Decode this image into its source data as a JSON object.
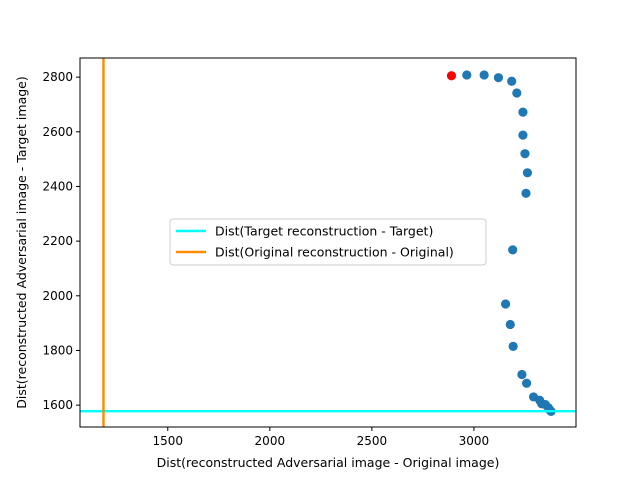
{
  "chart_data": {
    "type": "scatter",
    "title": "",
    "xlabel": "Dist(reconstructed Adversarial image - Original image)",
    "ylabel": "Dist(reconstructed Adversarial image - Target image)",
    "xlim": [
      1070,
      3500
    ],
    "ylim": [
      1520,
      2870
    ],
    "xticks": [
      1500,
      2000,
      2500,
      3000
    ],
    "yticks": [
      1600,
      1800,
      2000,
      2200,
      2400,
      2600,
      2800
    ],
    "grid": false,
    "legend_position": "center-left",
    "lines": [
      {
        "name": "Dist(Target reconstruction - Target)",
        "orientation": "horizontal",
        "value": 1578,
        "color": "#00ffff"
      },
      {
        "name": "Dist(Original reconstruction - Original)",
        "orientation": "vertical",
        "value": 1185,
        "color": "#ff8c00"
      }
    ],
    "start_point": {
      "x": 2890,
      "y": 2805,
      "color": "#ff0000"
    },
    "points": [
      {
        "x": 2965,
        "y": 2808
      },
      {
        "x": 3050,
        "y": 2808
      },
      {
        "x": 3120,
        "y": 2798
      },
      {
        "x": 3185,
        "y": 2785
      },
      {
        "x": 3210,
        "y": 2742
      },
      {
        "x": 3240,
        "y": 2672
      },
      {
        "x": 3240,
        "y": 2588
      },
      {
        "x": 3250,
        "y": 2520
      },
      {
        "x": 3262,
        "y": 2450
      },
      {
        "x": 3255,
        "y": 2375
      },
      {
        "x": 3190,
        "y": 2168
      },
      {
        "x": 3155,
        "y": 1970
      },
      {
        "x": 3178,
        "y": 1895
      },
      {
        "x": 3192,
        "y": 1815
      },
      {
        "x": 3235,
        "y": 1712
      },
      {
        "x": 3258,
        "y": 1680
      },
      {
        "x": 3292,
        "y": 1630
      },
      {
        "x": 3322,
        "y": 1618
      },
      {
        "x": 3332,
        "y": 1605
      },
      {
        "x": 3350,
        "y": 1602
      },
      {
        "x": 3365,
        "y": 1590
      },
      {
        "x": 3372,
        "y": 1582
      },
      {
        "x": 3378,
        "y": 1577
      }
    ],
    "point_color": "#1f77b4"
  }
}
